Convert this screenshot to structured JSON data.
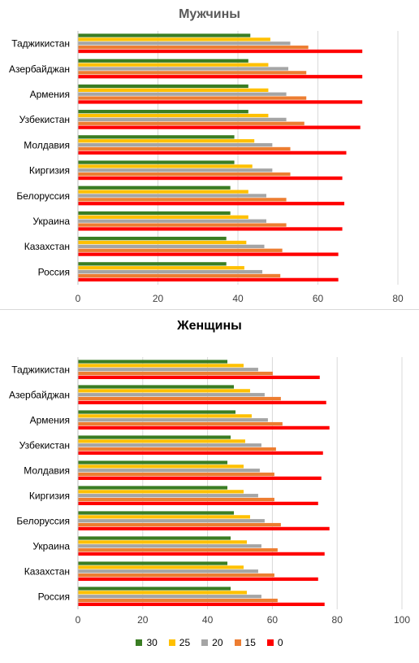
{
  "chart_data": [
    {
      "type": "bar",
      "orientation": "horizontal",
      "title": "Мужчины",
      "categories": [
        "Таджикистан",
        "Азербайджан",
        "Армения",
        "Узбекистан",
        "Молдавия",
        "Киргизия",
        "Белоруссия",
        "Украина",
        "Казахстан",
        "Россия"
      ],
      "series": [
        {
          "name": "30",
          "color": "#3a7d23",
          "values": [
            43,
            42.5,
            42.5,
            42.5,
            39,
            39,
            38,
            38,
            37,
            37
          ]
        },
        {
          "name": "25",
          "color": "#ffc000",
          "values": [
            48,
            47.5,
            47.5,
            47.5,
            44,
            43.5,
            42.5,
            42.5,
            42,
            41.5
          ]
        },
        {
          "name": "20",
          "color": "#a5a5a5",
          "values": [
            53,
            52.5,
            52,
            52,
            48.5,
            48.5,
            47,
            47,
            46.5,
            46
          ]
        },
        {
          "name": "15",
          "color": "#ed7d31",
          "values": [
            57.5,
            57,
            57,
            56.5,
            53,
            53,
            52,
            52,
            51,
            50.5
          ]
        },
        {
          "name": "0",
          "color": "#ff0000",
          "values": [
            71,
            71,
            71,
            70.5,
            67,
            66,
            66.5,
            66,
            65,
            65
          ]
        }
      ],
      "xlim": [
        0,
        80
      ],
      "xticks": [
        "0",
        "20",
        "40",
        "60",
        "80"
      ],
      "grid": true
    },
    {
      "type": "bar",
      "orientation": "horizontal",
      "title": "Женщины",
      "categories": [
        "Таджикистан",
        "Азербайджан",
        "Армения",
        "Узбекистан",
        "Молдавия",
        "Киргизия",
        "Белоруссия",
        "Украина",
        "Казахстан",
        "Россия"
      ],
      "series": [
        {
          "name": "30",
          "color": "#3a7d23",
          "values": [
            46,
            48,
            48.5,
            47,
            46,
            46,
            48,
            47,
            46,
            47
          ]
        },
        {
          "name": "25",
          "color": "#ffc000",
          "values": [
            51,
            53,
            53.5,
            51.5,
            51,
            51,
            53,
            52,
            51,
            52
          ]
        },
        {
          "name": "20",
          "color": "#a5a5a5",
          "values": [
            55.5,
            57.5,
            58.5,
            56.5,
            56,
            55.5,
            57.5,
            56.5,
            55.5,
            56.5
          ]
        },
        {
          "name": "15",
          "color": "#ed7d31",
          "values": [
            60,
            62.5,
            63,
            61,
            60.5,
            60.5,
            62.5,
            61.5,
            60.5,
            61.5
          ]
        },
        {
          "name": "0",
          "color": "#ff0000",
          "values": [
            74.5,
            76.5,
            77.5,
            75.5,
            75,
            74,
            77.5,
            76,
            74,
            76
          ]
        }
      ],
      "xlim": [
        0,
        100
      ],
      "xticks": [
        "0",
        "20",
        "40",
        "60",
        "80",
        "100"
      ],
      "grid": true,
      "legend_position": "bottom"
    }
  ],
  "legend": [
    {
      "label": "30",
      "color": "#3a7d23"
    },
    {
      "label": "25",
      "color": "#ffc000"
    },
    {
      "label": "20",
      "color": "#a5a5a5"
    },
    {
      "label": "15",
      "color": "#ed7d31"
    },
    {
      "label": "0",
      "color": "#ff0000"
    }
  ]
}
